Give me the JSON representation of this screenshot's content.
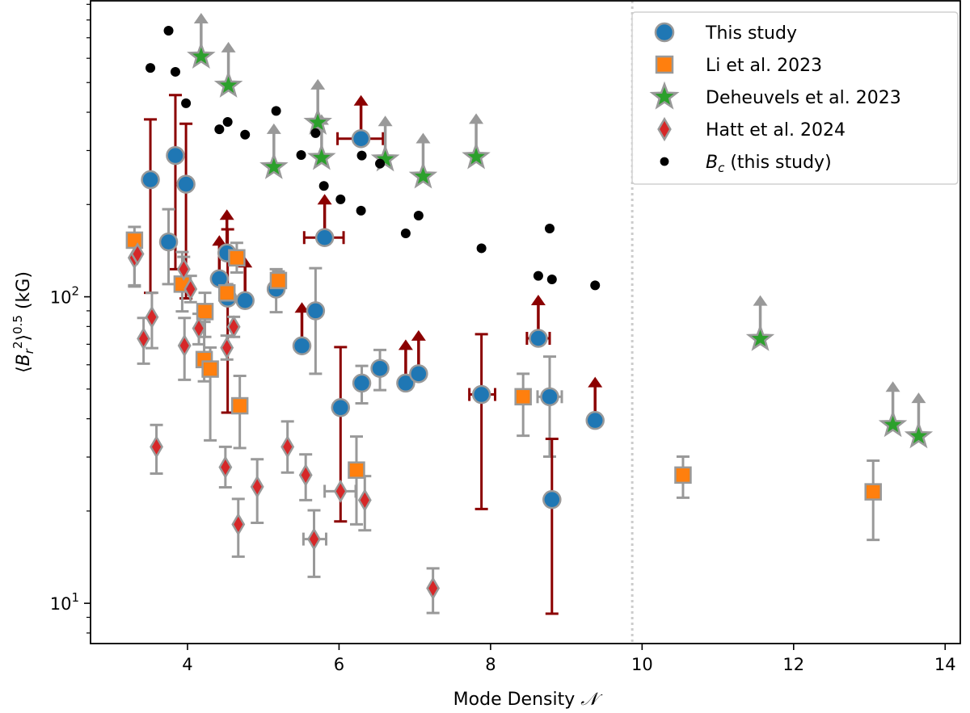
{
  "chart_data": {
    "type": "scatter",
    "xlabel": {
      "text": "Mode Density ",
      "symbol": "𝒩"
    },
    "ylabel": {
      "open": "⟨",
      "B": "B",
      "sub": "r",
      "sup": "2",
      "close": "⟩",
      "exp": "0.5",
      "unit": " (kG)"
    },
    "xscale": "linear",
    "yscale": "log",
    "xlim": [
      2.72,
      14.2
    ],
    "ylim": [
      7.39,
      924
    ],
    "grid": false,
    "legend_position": "top-right",
    "vline": {
      "x": 9.87,
      "style": "dotted",
      "color": "#cccccc"
    },
    "xticks": [
      {
        "value": 4,
        "label": "4"
      },
      {
        "value": 6,
        "label": "6"
      },
      {
        "value": 8,
        "label": "8"
      },
      {
        "value": 10,
        "label": "10"
      },
      {
        "value": 12,
        "label": "12"
      },
      {
        "value": 14,
        "label": "14"
      }
    ],
    "yticks": [
      {
        "value": 10,
        "base": "10",
        "exp": "1"
      },
      {
        "value": 100,
        "base": "10",
        "exp": "2"
      }
    ],
    "colors": {
      "err_red": "#8b0000",
      "err_grey": "#999999",
      "marker_edge": "#999999"
    },
    "series": [
      {
        "name": "This study",
        "marker": "circle",
        "color": "#1f77b4",
        "points": [
          {
            "x": 3.51,
            "y": 241,
            "ylo": 103,
            "yhi": 379,
            "err": "red"
          },
          {
            "x": 3.84,
            "y": 289,
            "ylo": 123,
            "yhi": 455,
            "err": "red"
          },
          {
            "x": 3.98,
            "y": 233,
            "ylo": 98.8,
            "yhi": 367,
            "err": "red"
          },
          {
            "x": 3.75,
            "y": 151,
            "ylo": 110,
            "yhi": 193,
            "err": "grey"
          },
          {
            "x": 5.81,
            "y": 156,
            "lim": true,
            "xlo": 5.54,
            "xhi": 6.06,
            "err": "red"
          },
          {
            "x": 6.29,
            "y": 328,
            "lim": true,
            "xlo": 5.98,
            "xhi": 6.58,
            "err": "red"
          },
          {
            "x": 4.52,
            "y": 139,
            "lim": true,
            "err": "red"
          },
          {
            "x": 4.42,
            "y": 114.5,
            "lim": true,
            "err": "red"
          },
          {
            "x": 4.53,
            "y": 99,
            "ylo": 41.9,
            "yhi": 166,
            "err": "red"
          },
          {
            "x": 4.76,
            "y": 97.2,
            "lim": true,
            "err": "red"
          },
          {
            "x": 5.17,
            "y": 106,
            "ylo": 89.1,
            "yhi": 123,
            "err": "grey"
          },
          {
            "x": 5.69,
            "y": 90,
            "ylo": 56.1,
            "yhi": 124,
            "err": "grey"
          },
          {
            "x": 5.51,
            "y": 69.2,
            "lim": true,
            "err": "red"
          },
          {
            "x": 6.02,
            "y": 43.5,
            "ylo": 18.5,
            "yhi": 68.5,
            "err": "red"
          },
          {
            "x": 6.3,
            "y": 52.3,
            "ylo": 44.9,
            "yhi": 59.5,
            "err": "grey"
          },
          {
            "x": 6.54,
            "y": 58.4,
            "ylo": 49.6,
            "yhi": 67.1,
            "err": "grey"
          },
          {
            "x": 6.88,
            "y": 52.3,
            "lim": true,
            "err": "red"
          },
          {
            "x": 7.05,
            "y": 56.1,
            "lim": true,
            "err": "red"
          },
          {
            "x": 7.88,
            "y": 48,
            "ylo": 20.3,
            "yhi": 75.5,
            "xlo": 7.72,
            "xhi": 8.06,
            "err": "red"
          },
          {
            "x": 8.63,
            "y": 73.2,
            "lim": true,
            "xlo": 8.48,
            "xhi": 8.78,
            "err": "red"
          },
          {
            "x": 8.78,
            "y": 47.2,
            "ylo": 30.1,
            "yhi": 63.8,
            "xlo": 8.62,
            "xhi": 8.94,
            "err": "grey"
          },
          {
            "x": 8.81,
            "y": 21.8,
            "ylo": 9.25,
            "yhi": 34.4,
            "err": "red"
          },
          {
            "x": 9.38,
            "y": 39.5,
            "lim": true,
            "err": "red"
          }
        ]
      },
      {
        "name": "Li et al. 2023",
        "marker": "square",
        "color": "#ff7f0e",
        "points": [
          {
            "x": 3.3,
            "y": 153,
            "ylo": 109,
            "yhi": 169,
            "err": "grey"
          },
          {
            "x": 4.65,
            "y": 134,
            "ylo": 120,
            "yhi": 150,
            "err": "grey"
          },
          {
            "x": 3.93,
            "y": 110,
            "ylo": 89.6,
            "yhi": 140,
            "err": "grey"
          },
          {
            "x": 4.23,
            "y": 89.5,
            "ylo": 74,
            "yhi": 103,
            "err": "grey"
          },
          {
            "x": 5.2,
            "y": 113,
            "ylo": 105,
            "yhi": 121,
            "err": "grey"
          },
          {
            "x": 4.52,
            "y": 103,
            "ylo": 96,
            "yhi": 110,
            "err": "grey"
          },
          {
            "x": 4.22,
            "y": 62.4,
            "ylo": 53,
            "yhi": 82.8,
            "err": "grey"
          },
          {
            "x": 4.3,
            "y": 58.1,
            "ylo": 34,
            "yhi": 68.3,
            "err": "grey"
          },
          {
            "x": 4.69,
            "y": 44.1,
            "ylo": 32.1,
            "yhi": 55.2,
            "err": "grey"
          },
          {
            "x": 6.23,
            "y": 27.2,
            "ylo": 18.1,
            "yhi": 35,
            "err": "grey"
          },
          {
            "x": 8.43,
            "y": 47.2,
            "ylo": 35.2,
            "yhi": 56.1,
            "err": "grey"
          },
          {
            "x": 10.54,
            "y": 26.2,
            "ylo": 22.1,
            "yhi": 30.1,
            "err": "grey"
          },
          {
            "x": 13.05,
            "y": 23.1,
            "ylo": 16.1,
            "yhi": 29.2,
            "err": "grey"
          }
        ]
      },
      {
        "name": "Deheuvels et al. 2023",
        "marker": "star",
        "color": "#2ca02c",
        "points": [
          {
            "x": 4.18,
            "y": 608,
            "lim": true,
            "err": "grey"
          },
          {
            "x": 4.54,
            "y": 489,
            "lim": true,
            "err": "grey"
          },
          {
            "x": 5.14,
            "y": 265,
            "lim": true,
            "err": "grey"
          },
          {
            "x": 5.72,
            "y": 370,
            "lim": true,
            "err": "grey"
          },
          {
            "x": 5.77,
            "y": 284,
            "lim": true,
            "err": "grey"
          },
          {
            "x": 6.61,
            "y": 281,
            "lim": true,
            "err": "grey"
          },
          {
            "x": 7.11,
            "y": 247,
            "lim": true,
            "err": "grey"
          },
          {
            "x": 7.81,
            "y": 286,
            "lim": true,
            "err": "grey"
          },
          {
            "x": 11.56,
            "y": 72.9,
            "lim": true,
            "err": "grey"
          },
          {
            "x": 13.31,
            "y": 38.2,
            "lim": true,
            "err": "grey"
          },
          {
            "x": 13.65,
            "y": 35.1,
            "lim": true,
            "err": "grey"
          }
        ]
      },
      {
        "name": "Hatt et al. 2024",
        "marker": "diamond",
        "color": "#d62728",
        "points": [
          {
            "x": 3.3,
            "y": 134,
            "ylo": 108,
            "yhi": 150,
            "err": "grey"
          },
          {
            "x": 3.34,
            "y": 138,
            "err": "grey"
          },
          {
            "x": 3.53,
            "y": 85.8,
            "ylo": 68,
            "yhi": 103,
            "err": "grey"
          },
          {
            "x": 3.42,
            "y": 73,
            "ylo": 60.5,
            "yhi": 85.3,
            "err": "grey"
          },
          {
            "x": 3.96,
            "y": 69.3,
            "ylo": 53.6,
            "yhi": 85.3,
            "err": "grey"
          },
          {
            "x": 4.15,
            "y": 78.9,
            "ylo": 70,
            "yhi": 88,
            "err": "grey"
          },
          {
            "x": 4.04,
            "y": 106,
            "ylo": 96,
            "yhi": 117,
            "err": "grey"
          },
          {
            "x": 3.95,
            "y": 123,
            "ylo": 110,
            "yhi": 135,
            "err": "grey"
          },
          {
            "x": 4.61,
            "y": 79.8,
            "ylo": 74,
            "yhi": 86,
            "err": "grey"
          },
          {
            "x": 4.52,
            "y": 68.2,
            "ylo": 62.4,
            "yhi": 74.7,
            "err": "grey"
          },
          {
            "x": 3.59,
            "y": 32.4,
            "ylo": 26.5,
            "yhi": 38.2,
            "err": "grey"
          },
          {
            "x": 5.32,
            "y": 32.4,
            "ylo": 26.7,
            "yhi": 39.2,
            "err": "grey"
          },
          {
            "x": 4.5,
            "y": 27.8,
            "ylo": 23.9,
            "yhi": 32.4,
            "err": "grey"
          },
          {
            "x": 4.92,
            "y": 24,
            "ylo": 18.3,
            "yhi": 29.5,
            "err": "grey"
          },
          {
            "x": 4.67,
            "y": 18.1,
            "ylo": 14.2,
            "yhi": 21.9,
            "err": "grey"
          },
          {
            "x": 5.56,
            "y": 26.2,
            "ylo": 21.7,
            "yhi": 30.6,
            "err": "grey"
          },
          {
            "x": 5.67,
            "y": 16.2,
            "ylo": 12.2,
            "yhi": 20.1,
            "xlo": 5.53,
            "xhi": 5.83,
            "err": "grey"
          },
          {
            "x": 6.02,
            "y": 23.2,
            "xlo": 5.81,
            "xhi": 6.22,
            "err": "grey"
          },
          {
            "x": 6.34,
            "y": 21.7,
            "ylo": 17.3,
            "yhi": 26,
            "err": "grey"
          },
          {
            "x": 7.24,
            "y": 11.2,
            "ylo": 9.3,
            "yhi": 13,
            "err": "grey"
          }
        ]
      },
      {
        "name": "B_c (this study)",
        "marker": "dot",
        "color": "#000000",
        "points": [
          {
            "x": 3.75,
            "y": 738
          },
          {
            "x": 3.51,
            "y": 558
          },
          {
            "x": 3.84,
            "y": 542
          },
          {
            "x": 3.98,
            "y": 428
          },
          {
            "x": 4.42,
            "y": 352
          },
          {
            "x": 4.53,
            "y": 372
          },
          {
            "x": 4.76,
            "y": 338
          },
          {
            "x": 5.17,
            "y": 404
          },
          {
            "x": 5.69,
            "y": 342
          },
          {
            "x": 5.5,
            "y": 290
          },
          {
            "x": 6.3,
            "y": 289
          },
          {
            "x": 6.54,
            "y": 272
          },
          {
            "x": 5.8,
            "y": 230
          },
          {
            "x": 6.02,
            "y": 208
          },
          {
            "x": 6.29,
            "y": 191
          },
          {
            "x": 7.05,
            "y": 184
          },
          {
            "x": 6.88,
            "y": 161
          },
          {
            "x": 7.88,
            "y": 144
          },
          {
            "x": 8.78,
            "y": 167
          },
          {
            "x": 8.63,
            "y": 117
          },
          {
            "x": 8.81,
            "y": 114
          },
          {
            "x": 9.38,
            "y": 109
          }
        ]
      }
    ],
    "legend": [
      {
        "label": "This study",
        "marker": "circle",
        "color": "#1f77b4"
      },
      {
        "label": "Li et al. 2023",
        "marker": "square",
        "color": "#ff7f0e"
      },
      {
        "label": "Deheuvels et al. 2023",
        "marker": "star",
        "color": "#2ca02c"
      },
      {
        "label": "Hatt et al. 2024",
        "marker": "diamond",
        "color": "#d62728"
      },
      {
        "label_parts": {
          "B": "B",
          "sub": "c",
          "rest": " (this study)"
        },
        "marker": "dot",
        "color": "#000000"
      }
    ]
  }
}
